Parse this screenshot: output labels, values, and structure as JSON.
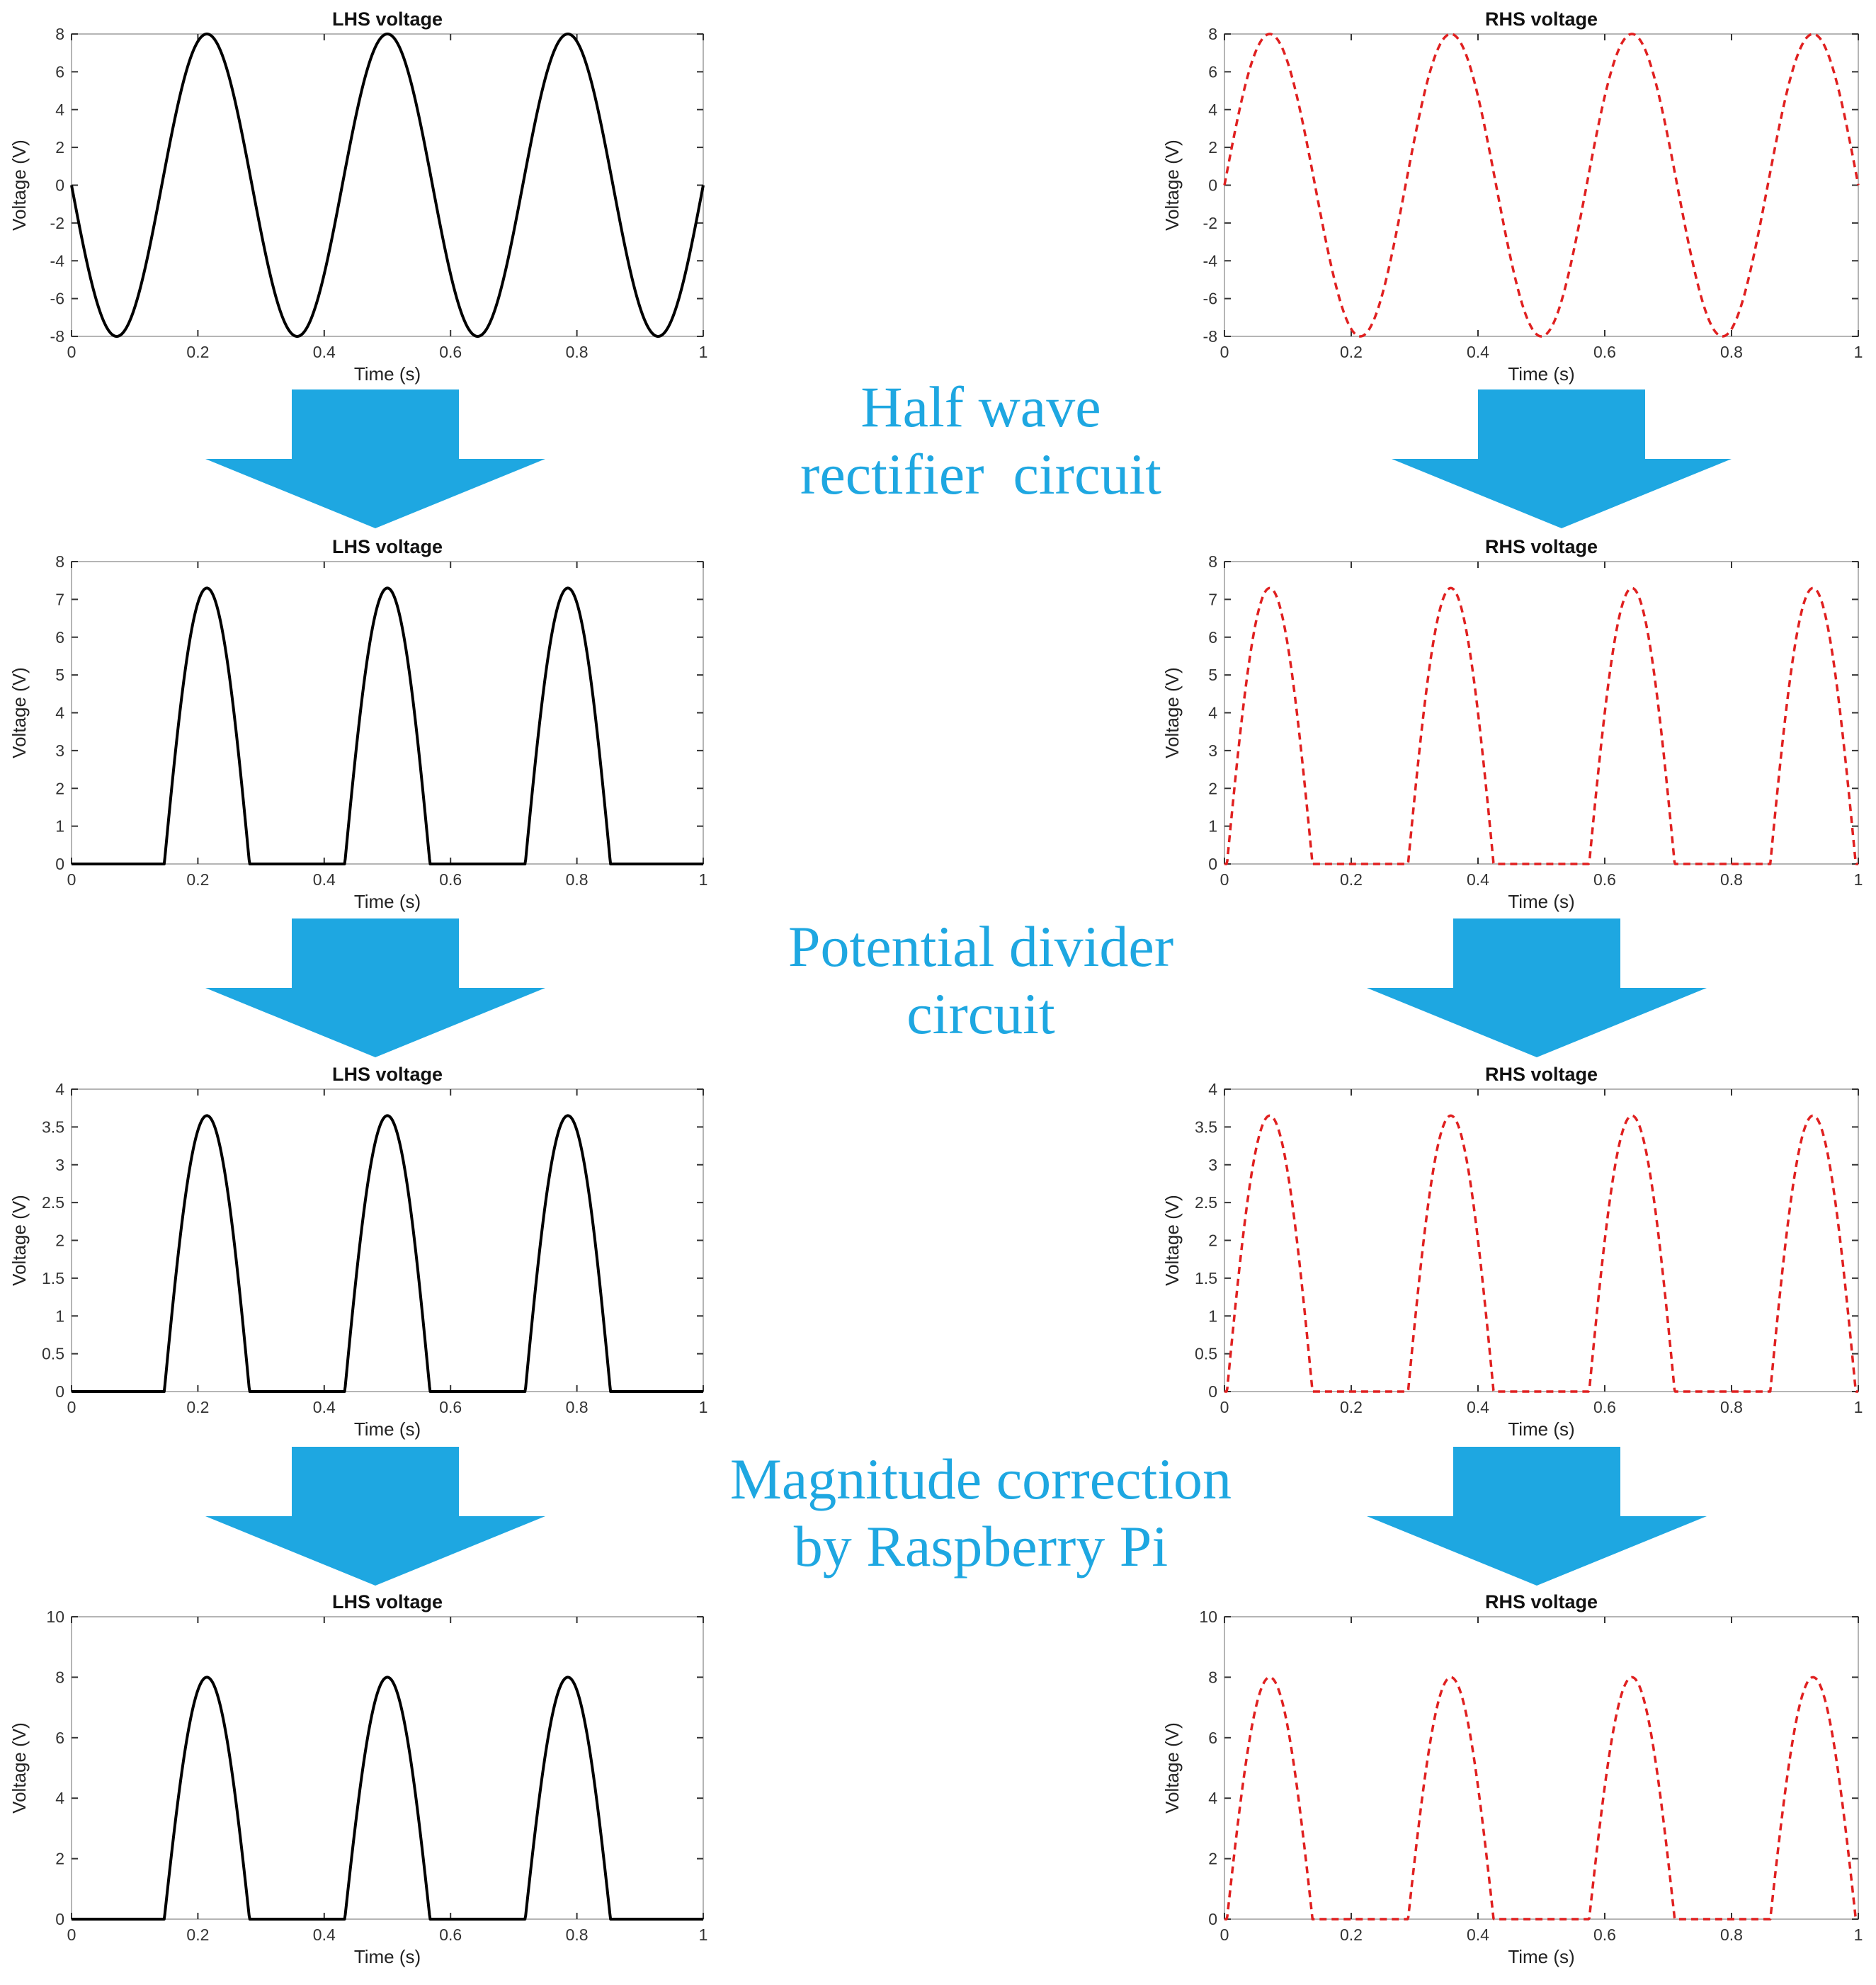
{
  "colors": {
    "lhs_line": "#000000",
    "rhs_line": "#e02020",
    "arrow": "#1ea7e1",
    "stage_text": "#1ea7e1",
    "axis": "#333333",
    "grid": "none"
  },
  "stages": [
    {
      "lines": [
        "Half wave",
        "rectifier  circuit"
      ]
    },
    {
      "lines": [
        "Potential divider",
        "circuit"
      ]
    },
    {
      "lines": [
        "Magnitude correction",
        "by Raspberry Pi"
      ]
    }
  ],
  "arrows": [
    {
      "icon": "down-arrow-icon",
      "direction": "down"
    }
  ],
  "chart_data": [
    {
      "type": "line",
      "panel": "row1-left",
      "title": "LHS voltage",
      "xlabel": "Time (s)",
      "ylabel": "Voltage (V)",
      "xlim": [
        0,
        1
      ],
      "ylim": [
        -8,
        8
      ],
      "xticks": [
        "0",
        "0.2",
        "0.4",
        "0.6",
        "0.8",
        "1"
      ],
      "yticks": [
        "-8",
        "-6",
        "-4",
        "-2",
        "0",
        "2",
        "4",
        "6",
        "8"
      ],
      "series": [
        {
          "style": "solid",
          "color": "#000000",
          "waveform": "sine",
          "amplitude": 8,
          "frequency_hz": 3.5,
          "phase_deg": 180,
          "clip_negative": false,
          "scale": 1
        }
      ]
    },
    {
      "type": "line",
      "panel": "row1-right",
      "title": "RHS voltage",
      "xlabel": "Time (s)",
      "ylabel": "Voltage (V)",
      "xlim": [
        0,
        1
      ],
      "ylim": [
        -8,
        8
      ],
      "xticks": [
        "0",
        "0.2",
        "0.4",
        "0.6",
        "0.8",
        "1"
      ],
      "yticks": [
        "-8",
        "-6",
        "-4",
        "-2",
        "0",
        "2",
        "4",
        "6",
        "8"
      ],
      "series": [
        {
          "style": "dashed",
          "color": "#e02020",
          "waveform": "sine",
          "amplitude": 8,
          "frequency_hz": 3.5,
          "phase_deg": 0,
          "clip_negative": false,
          "scale": 1
        }
      ]
    },
    {
      "type": "line",
      "panel": "row2-left",
      "title": "LHS voltage",
      "xlabel": "Time (s)",
      "ylabel": "Voltage (V)",
      "xlim": [
        0,
        1
      ],
      "ylim": [
        0,
        8
      ],
      "xticks": [
        "0",
        "0.2",
        "0.4",
        "0.6",
        "0.8",
        "1"
      ],
      "yticks": [
        "0",
        "1",
        "2",
        "3",
        "4",
        "5",
        "6",
        "7",
        "8"
      ],
      "series": [
        {
          "style": "solid",
          "color": "#000000",
          "waveform": "sine",
          "amplitude": 8,
          "frequency_hz": 3.5,
          "phase_deg": 180,
          "clip_negative": true,
          "offset": 0.7,
          "scale": 1
        }
      ]
    },
    {
      "type": "line",
      "panel": "row2-right",
      "title": "RHS voltage",
      "xlabel": "Time (s)",
      "ylabel": "Voltage (V)",
      "xlim": [
        0,
        1
      ],
      "ylim": [
        0,
        8
      ],
      "xticks": [
        "0",
        "0.2",
        "0.4",
        "0.6",
        "0.8",
        "1"
      ],
      "yticks": [
        "0",
        "1",
        "2",
        "3",
        "4",
        "5",
        "6",
        "7",
        "8"
      ],
      "series": [
        {
          "style": "dashed",
          "color": "#e02020",
          "waveform": "sine",
          "amplitude": 8,
          "frequency_hz": 3.5,
          "phase_deg": 0,
          "clip_negative": true,
          "offset": 0.7,
          "scale": 1
        }
      ]
    },
    {
      "type": "line",
      "panel": "row3-left",
      "title": "LHS voltage",
      "xlabel": "Time (s)",
      "ylabel": "Voltage (V)",
      "xlim": [
        0,
        1
      ],
      "ylim": [
        0,
        4
      ],
      "xticks": [
        "0",
        "0.2",
        "0.4",
        "0.6",
        "0.8",
        "1"
      ],
      "yticks": [
        "0",
        "0.5",
        "1",
        "1.5",
        "2",
        "2.5",
        "3",
        "3.5",
        "4"
      ],
      "series": [
        {
          "style": "solid",
          "color": "#000000",
          "waveform": "sine",
          "amplitude": 8,
          "frequency_hz": 3.5,
          "phase_deg": 180,
          "clip_negative": true,
          "offset": 0.7,
          "scale": 0.5
        }
      ]
    },
    {
      "type": "line",
      "panel": "row3-right",
      "title": "RHS voltage",
      "xlabel": "Time (s)",
      "ylabel": "Voltage (V)",
      "xlim": [
        0,
        1
      ],
      "ylim": [
        0,
        4
      ],
      "xticks": [
        "0",
        "0.2",
        "0.4",
        "0.6",
        "0.8",
        "1"
      ],
      "yticks": [
        "0",
        "0.5",
        "1",
        "1.5",
        "2",
        "2.5",
        "3",
        "3.5",
        "4"
      ],
      "series": [
        {
          "style": "dashed",
          "color": "#e02020",
          "waveform": "sine",
          "amplitude": 8,
          "frequency_hz": 3.5,
          "phase_deg": 0,
          "clip_negative": true,
          "offset": 0.7,
          "scale": 0.5
        }
      ]
    },
    {
      "type": "line",
      "panel": "row4-left",
      "title": "LHS voltage",
      "xlabel": "Time (s)",
      "ylabel": "Voltage (V)",
      "xlim": [
        0,
        1
      ],
      "ylim": [
        0,
        10
      ],
      "xticks": [
        "0",
        "0.2",
        "0.4",
        "0.6",
        "0.8",
        "1"
      ],
      "yticks": [
        "0",
        "2",
        "4",
        "6",
        "8",
        "10"
      ],
      "series": [
        {
          "style": "solid",
          "color": "#000000",
          "waveform": "sine",
          "amplitude": 8,
          "frequency_hz": 3.5,
          "phase_deg": 180,
          "clip_negative": true,
          "offset": 0.7,
          "scale": 1.0959
        }
      ]
    },
    {
      "type": "line",
      "panel": "row4-right",
      "title": "RHS voltage",
      "xlabel": "Time (s)",
      "ylabel": "Voltage (V)",
      "xlim": [
        0,
        1
      ],
      "ylim": [
        0,
        10
      ],
      "xticks": [
        "0",
        "0.2",
        "0.4",
        "0.6",
        "0.8",
        "1"
      ],
      "yticks": [
        "0",
        "2",
        "4",
        "6",
        "8",
        "10"
      ],
      "series": [
        {
          "style": "dashed",
          "color": "#e02020",
          "waveform": "sine",
          "amplitude": 8,
          "frequency_hz": 3.5,
          "phase_deg": 0,
          "clip_negative": true,
          "offset": 0.7,
          "scale": 1.0959
        }
      ]
    }
  ]
}
